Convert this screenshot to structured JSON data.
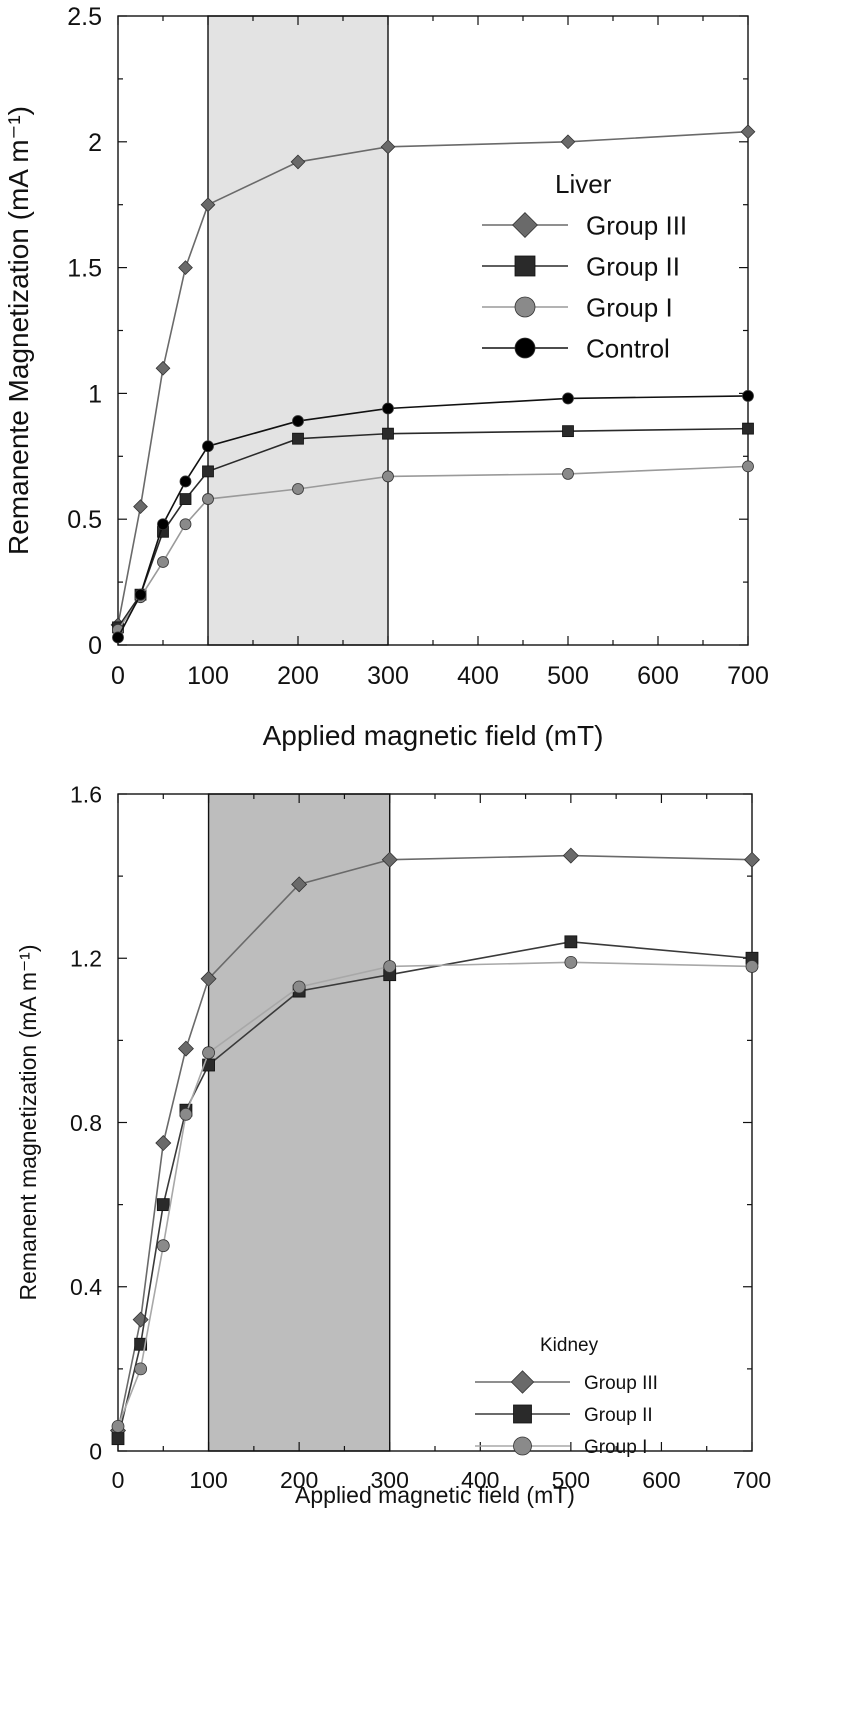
{
  "chart_data": [
    {
      "type": "line",
      "title": "",
      "xlabel": "Applied magnetic field (mT)",
      "ylabel": "Remanente Magnetization (mA m⁻¹)",
      "xlim": [
        0,
        700
      ],
      "ylim": [
        0,
        2.5
      ],
      "xticks": [
        0,
        100,
        200,
        300,
        400,
        500,
        600,
        700
      ],
      "yticks": [
        0,
        0.5,
        1,
        1.5,
        2,
        2.5
      ],
      "ytick_labels": [
        "0",
        "0.5",
        "1",
        "1.5",
        "2",
        "2.5"
      ],
      "shaded_region": [
        100,
        300
      ],
      "shade_color": "#e3e3e3",
      "grid": false,
      "legend": {
        "title": "Liver",
        "position": "top-right"
      },
      "series": [
        {
          "name": "Group III",
          "marker": "diamond",
          "color": "#6a6a6a",
          "marker_color": "#6a6a6a",
          "x": [
            0,
            25,
            50,
            75,
            100,
            200,
            300,
            500,
            700
          ],
          "y": [
            0.08,
            0.55,
            1.1,
            1.5,
            1.75,
            1.92,
            1.98,
            2.0,
            2.04
          ]
        },
        {
          "name": "Group II",
          "marker": "square",
          "color": "#2a2a2a",
          "marker_color": "#2a2a2a",
          "x": [
            0,
            25,
            50,
            75,
            100,
            200,
            300,
            500,
            700
          ],
          "y": [
            0.07,
            0.2,
            0.45,
            0.58,
            0.69,
            0.82,
            0.84,
            0.85,
            0.86
          ]
        },
        {
          "name": "Group I",
          "marker": "circle",
          "color": "#9a9a9a",
          "marker_color": "#8a8a8a",
          "x": [
            0,
            25,
            50,
            75,
            100,
            200,
            300,
            500,
            700
          ],
          "y": [
            0.06,
            0.19,
            0.33,
            0.48,
            0.58,
            0.62,
            0.67,
            0.68,
            0.71
          ]
        },
        {
          "name": "Control",
          "marker": "circle",
          "color": "#111111",
          "marker_color": "#000000",
          "x": [
            0,
            25,
            50,
            75,
            100,
            200,
            300,
            500,
            700
          ],
          "y": [
            0.03,
            0.2,
            0.48,
            0.65,
            0.79,
            0.89,
            0.94,
            0.98,
            0.99
          ]
        }
      ]
    },
    {
      "type": "line",
      "title": "",
      "xlabel": "Applied magnetic field (mT)",
      "ylabel": "Remanent magnetization (mA m⁻¹)",
      "xlim": [
        0,
        700
      ],
      "ylim": [
        0,
        1.6
      ],
      "xticks": [
        0,
        100,
        200,
        300,
        400,
        500,
        600,
        700
      ],
      "yticks": [
        0,
        0.4,
        0.8,
        1.2,
        1.6
      ],
      "ytick_labels": [
        "0",
        "0.4",
        "0.8",
        "1.2",
        "1.6"
      ],
      "shaded_region": [
        100,
        300
      ],
      "shade_color": "#bdbdbd",
      "grid": false,
      "legend": {
        "title": "Kidney",
        "position": "lower-right"
      },
      "series": [
        {
          "name": "Group III",
          "marker": "diamond",
          "color": "#6a6a6a",
          "marker_color": "#6a6a6a",
          "x": [
            0,
            25,
            50,
            75,
            100,
            200,
            300,
            500,
            700
          ],
          "y": [
            0.05,
            0.32,
            0.75,
            0.98,
            1.15,
            1.38,
            1.44,
            1.45,
            1.44
          ]
        },
        {
          "name": "Group II",
          "marker": "square",
          "color": "#3a3a3a",
          "marker_color": "#2a2a2a",
          "x": [
            0,
            25,
            50,
            75,
            100,
            200,
            300,
            500,
            700
          ],
          "y": [
            0.03,
            0.26,
            0.6,
            0.83,
            0.94,
            1.12,
            1.16,
            1.24,
            1.2
          ]
        },
        {
          "name": "Group I",
          "marker": "circle",
          "color": "#a8a8a8",
          "marker_color": "#8a8a8a",
          "x": [
            0,
            25,
            50,
            75,
            100,
            200,
            300,
            500,
            700
          ],
          "y": [
            0.06,
            0.2,
            0.5,
            0.82,
            0.97,
            1.13,
            1.18,
            1.19,
            1.18
          ]
        }
      ]
    }
  ]
}
